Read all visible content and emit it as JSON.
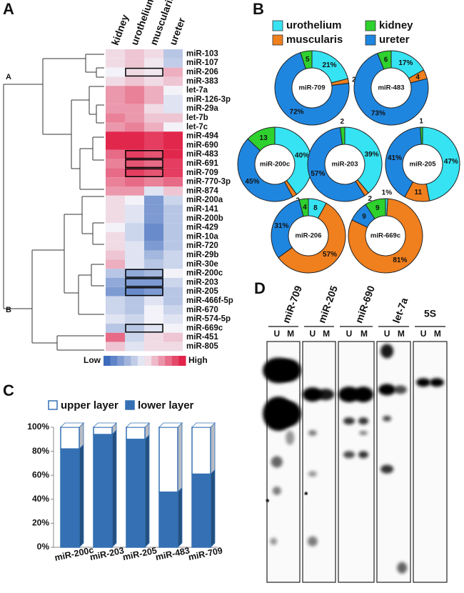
{
  "panel_labels": [
    "A",
    "B",
    "C",
    "D"
  ],
  "chart_data": [
    {
      "type": "heatmap",
      "x": [
        "kidney",
        "urothelium",
        "muscularis",
        "ureter"
      ],
      "y": [
        "miR-103",
        "miR-107",
        "miR-206",
        "miR-383",
        "let-7a",
        "miR-126-3p",
        "miR-29a",
        "let-7b",
        "let-7c",
        "miR-494",
        "miR-690",
        "miR-483",
        "miR-691",
        "miR-709",
        "miR-770-3p",
        "miR-874",
        "miR-200a",
        "miR-141",
        "miR-200b",
        "miR-429",
        "miR-10a",
        "miR-720",
        "miR-29b",
        "miR-30e",
        "miR-200c",
        "miR-203",
        "miR-205",
        "miR-466f-5p",
        "miR-670",
        "miR-574-5p",
        "miR-669c",
        "miR-451",
        "miR-805"
      ],
      "values": [
        [
          0.1,
          0.2,
          0.1,
          -0.3
        ],
        [
          0.1,
          0.2,
          0.05,
          -0.25
        ],
        [
          0,
          0.1,
          0.05,
          0.3
        ],
        [
          0.1,
          0.2,
          0.1,
          0.2
        ],
        [
          0.4,
          0.5,
          0.3,
          0
        ],
        [
          0.4,
          0.5,
          0.3,
          -0.1
        ],
        [
          0.4,
          0.4,
          0.1,
          -0.1
        ],
        [
          0.5,
          0.4,
          0.2,
          0.2
        ],
        [
          0.4,
          0.5,
          0.3,
          0
        ],
        [
          0.9,
          0.9,
          0.8,
          0.9
        ],
        [
          0.9,
          0.9,
          0.8,
          0.9
        ],
        [
          0.6,
          0.8,
          0.7,
          0.9
        ],
        [
          0.5,
          0.7,
          0.6,
          0.8
        ],
        [
          0.6,
          0.8,
          0.7,
          0.8
        ],
        [
          0.5,
          0.6,
          0.5,
          0.6
        ],
        [
          0.4,
          0.4,
          -0.1,
          0.2
        ],
        [
          0.1,
          0,
          -0.6,
          -0.2
        ],
        [
          0.1,
          -0.1,
          -0.6,
          -0.3
        ],
        [
          0.1,
          -0.1,
          -0.6,
          -0.3
        ],
        [
          0,
          -0.2,
          -0.7,
          -0.3
        ],
        [
          0.1,
          -0.2,
          -0.7,
          -0.3
        ],
        [
          0.1,
          -0.1,
          -0.6,
          -0.3
        ],
        [
          0.2,
          -0.1,
          -0.4,
          -0.2
        ],
        [
          0.3,
          -0.1,
          -0.3,
          -0.2
        ],
        [
          -0.3,
          -0.5,
          -0.4,
          0
        ],
        [
          -0.5,
          -0.6,
          -0.6,
          -0.2
        ],
        [
          -0.6,
          -0.7,
          -0.6,
          -0.3
        ],
        [
          -0.2,
          -0.3,
          -0.1,
          -0.3
        ],
        [
          -0.2,
          -0.3,
          0,
          -0.2
        ],
        [
          -0.1,
          -0.2,
          0,
          -0.1
        ],
        [
          -0.3,
          -0.3,
          -0.1,
          0
        ],
        [
          0.6,
          -0.2,
          0.1,
          0.2
        ],
        [
          0.2,
          -0.1,
          0.1,
          0.1
        ]
      ],
      "zlim": [
        -1,
        1
      ],
      "colors": [
        "#2f5fb8",
        "#f2f2f8",
        "#e0103a"
      ],
      "colorbar_labels": [
        "Low",
        "High"
      ],
      "cluster_labels": [
        "A",
        "B"
      ],
      "boxed_rows": [
        2,
        11,
        12,
        13,
        24,
        25,
        26,
        30
      ]
    },
    {
      "type": "donut",
      "legend": [
        {
          "name": "urothelium",
          "color": "#36e3f2"
        },
        {
          "name": "muscularis",
          "color": "#f07f1e"
        },
        {
          "name": "kidney",
          "color": "#2ed12e"
        },
        {
          "name": "ureter",
          "color": "#1f86e0"
        }
      ],
      "charts": [
        {
          "title": "miR-709",
          "values": [
            21,
            2,
            5,
            72
          ],
          "value_labels": [
            "21%",
            "2",
            "5",
            "72%"
          ]
        },
        {
          "title": "miR-483",
          "values": [
            17,
            4,
            6,
            73
          ],
          "value_labels": [
            "17%",
            "4",
            "6",
            "73%"
          ]
        },
        {
          "title": "miR-200c",
          "values": [
            40,
            2,
            13,
            45
          ],
          "value_labels": [
            "40%",
            "2",
            "13",
            "45%"
          ]
        },
        {
          "title": "miR-203",
          "values": [
            39,
            2,
            2,
            57
          ],
          "value_labels": [
            "39%",
            "2",
            "2",
            "57%"
          ]
        },
        {
          "title": "miR-205",
          "values": [
            47,
            11,
            1,
            41
          ],
          "value_labels": [
            "47%",
            "11",
            "1",
            "41%"
          ]
        },
        {
          "title": "miR-206",
          "values": [
            8,
            57,
            4,
            31
          ],
          "value_labels": [
            "8",
            "57%",
            "4",
            "31%"
          ]
        },
        {
          "title": "miR-669c",
          "values": [
            1,
            81,
            9,
            9
          ],
          "value_labels": [
            "1%",
            "81%",
            "9",
            "9"
          ]
        }
      ]
    },
    {
      "type": "bar",
      "categories": [
        "miR-200c",
        "miR-203",
        "miR-205",
        "miR-483",
        "miR-709"
      ],
      "series": [
        {
          "name": "lower layer",
          "color": "#3470b3",
          "values": [
            82,
            94,
            90,
            46,
            61
          ]
        },
        {
          "name": "upper layer",
          "color": "#ffffff",
          "values": [
            18,
            6,
            10,
            54,
            39
          ]
        }
      ],
      "ylim": [
        0,
        100
      ],
      "yticks": [
        {
          "value": 0,
          "label": "0%"
        },
        {
          "value": 20,
          "label": "20%"
        },
        {
          "value": 40,
          "label": "40%"
        },
        {
          "value": 60,
          "label": "60%"
        },
        {
          "value": 80,
          "label": "80%"
        },
        {
          "value": 100,
          "label": "100%"
        }
      ],
      "stacked": true
    }
  ],
  "blot": {
    "probes": [
      "miR-709",
      "miR-205",
      "miR-690",
      "let-7a",
      "5S"
    ],
    "lanes": [
      "U",
      "M"
    ],
    "marker": "*"
  }
}
